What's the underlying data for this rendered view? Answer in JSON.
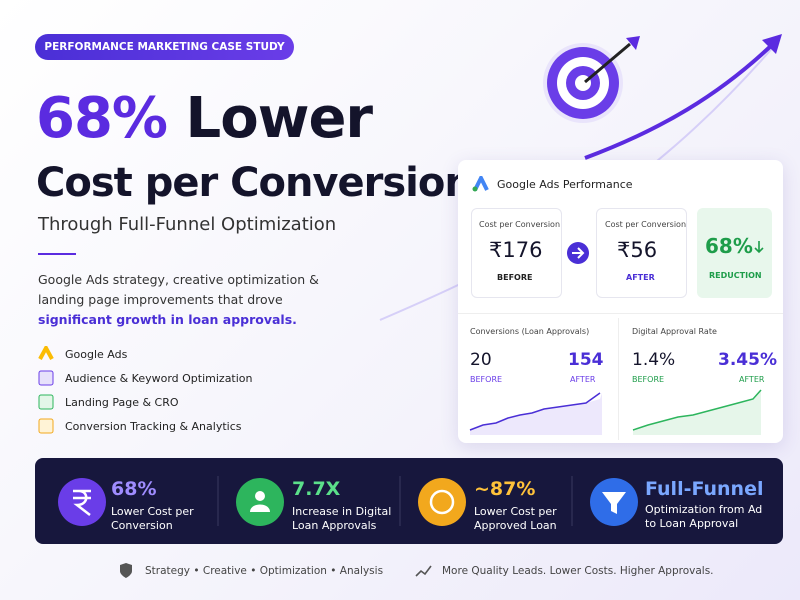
{
  "badge": "PERFORMANCE MARKETING CASE STUDY",
  "headline": {
    "highlight": "68%",
    "rest": "Lower",
    "line2": "Cost per Conversion"
  },
  "subtitle": "Through Full-Funnel Optimization",
  "description": {
    "text": "Google Ads strategy, creative optimization & landing page improvements that drove",
    "emphasis": "significant growth in loan approvals."
  },
  "features": [
    "Google Ads",
    "Audience & Keyword Optimization",
    "Landing Page & CRO",
    "Conversion Tracking & Analytics"
  ],
  "panel": {
    "title": "Google Ads Performance",
    "before": {
      "label": "Cost per Conversion",
      "value": "₹176",
      "tag": "BEFORE"
    },
    "after": {
      "label": "Cost per Conversion",
      "value": "₹56",
      "tag": "AFTER"
    },
    "reduction": {
      "value": "68%",
      "tag": "REDUCTION"
    },
    "conversions": {
      "label": "Conversions (Loan Approvals)",
      "before": "20",
      "before_tag": "BEFORE",
      "after": "154",
      "after_tag": "AFTER"
    },
    "approval_rate": {
      "label": "Digital Approval Rate",
      "before": "1.4%",
      "before_tag": "BEFORE",
      "after": "3.45%",
      "after_tag": "AFTER"
    }
  },
  "stats": [
    {
      "value": "68%",
      "label": "Lower Cost per Conversion"
    },
    {
      "value": "7.7X",
      "label": "Increase in Digital Loan Approvals"
    },
    {
      "value": "~87%",
      "label": "Lower Cost per Approved Loan"
    },
    {
      "value": "Full-Funnel",
      "label": "Optimization from Ad to Loan Approval"
    }
  ],
  "footer": [
    "Strategy • Creative • Optimization • Analysis",
    "More Quality Leads. Lower Costs. Higher Approvals."
  ]
}
